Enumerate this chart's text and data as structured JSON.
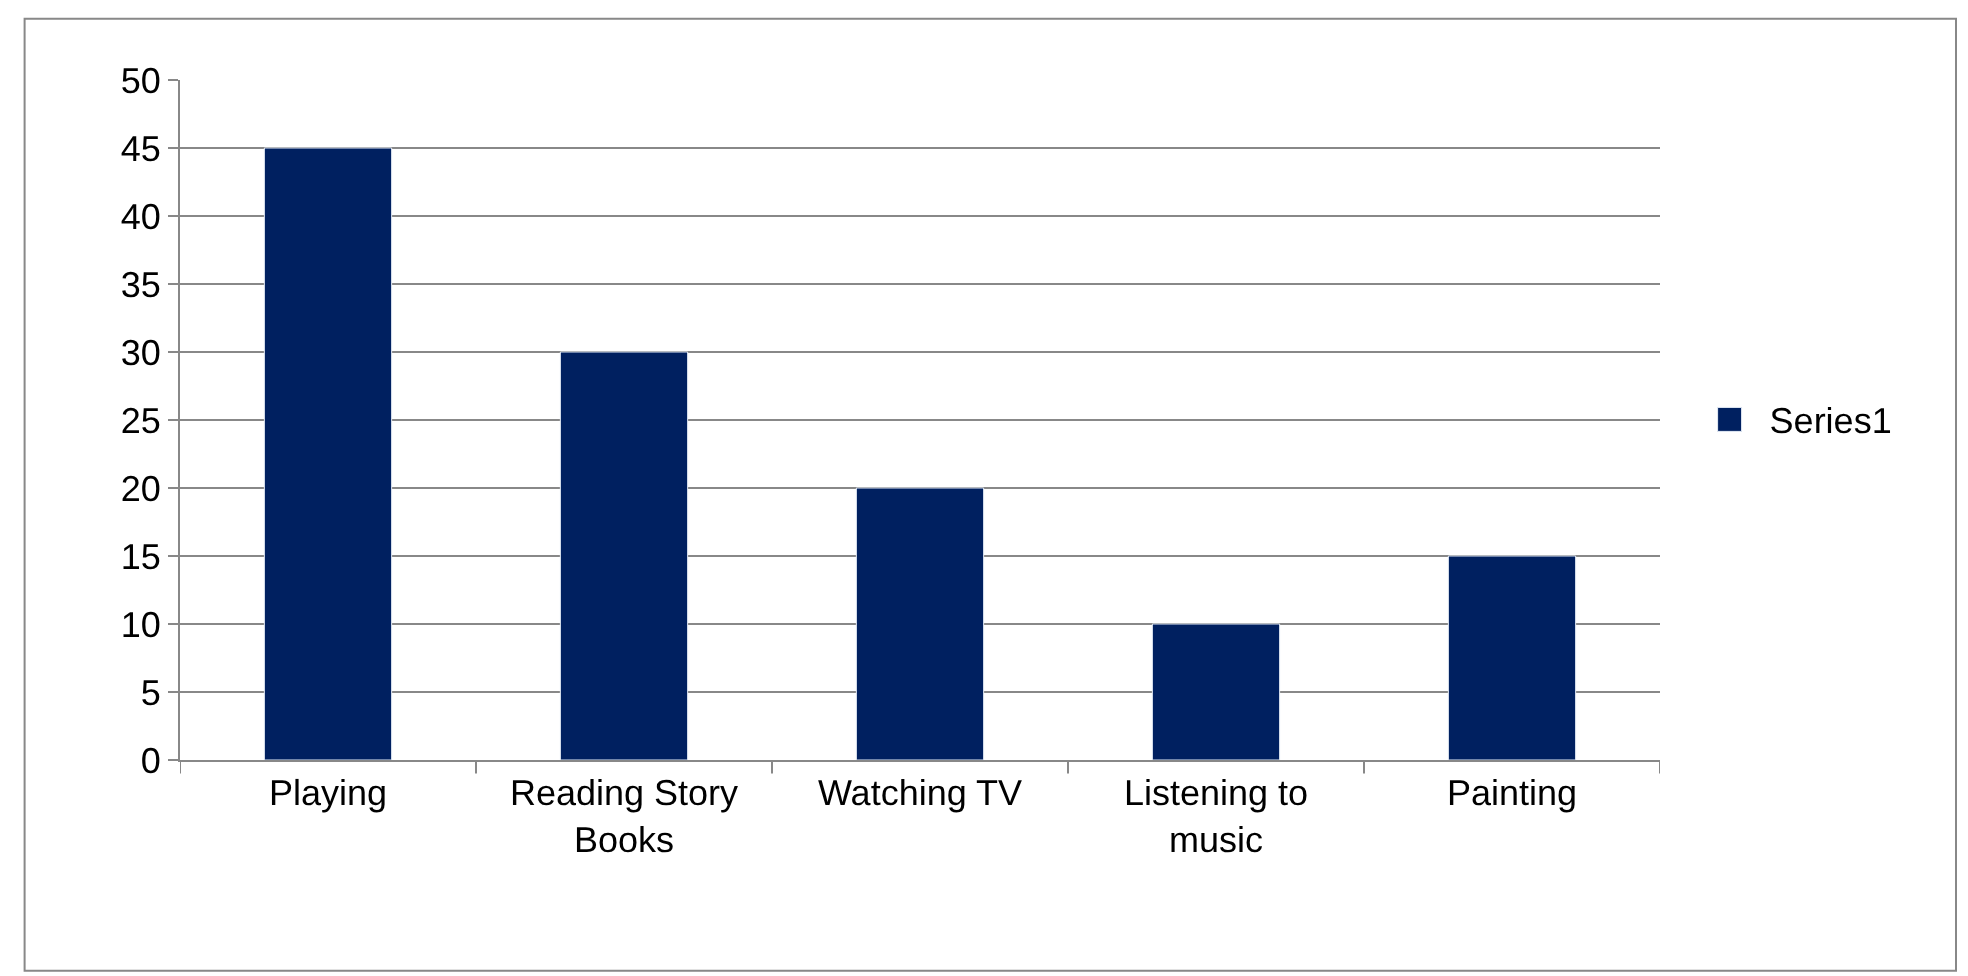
{
  "chart_data": {
    "type": "bar",
    "categories": [
      "Playing",
      "Reading Story Books",
      "Watching TV",
      "Listening to music",
      "Painting"
    ],
    "series": [
      {
        "name": "Series1",
        "color": "#002060",
        "values": [
          45,
          30,
          20,
          10,
          15
        ]
      }
    ],
    "ylim": [
      0,
      50
    ],
    "yticks": [
      0,
      5,
      10,
      15,
      20,
      25,
      30,
      35,
      40,
      45,
      50
    ],
    "grid": "y",
    "legend": "right"
  }
}
